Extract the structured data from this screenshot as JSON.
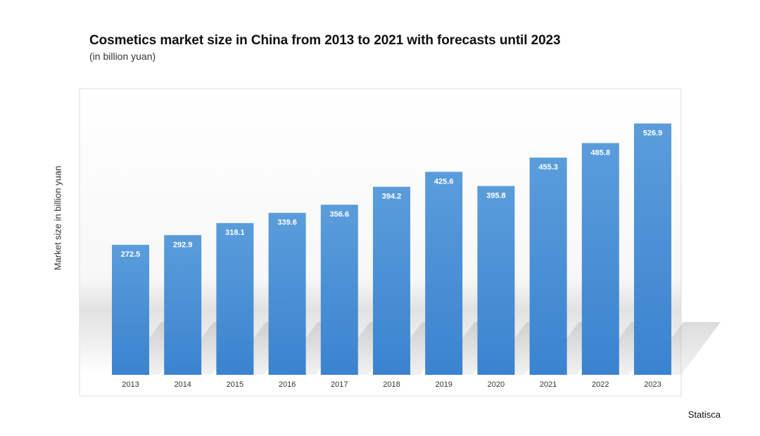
{
  "chart_data": {
    "type": "bar",
    "title": "Cosmetics market size in China from 2013 to 2021 with forecasts until 2023",
    "subtitle": "(in billion yuan)",
    "xlabel": "",
    "ylabel": "Market size in billion yuan",
    "categories": [
      "2013",
      "2014",
      "2015",
      "2016",
      "2017",
      "2018",
      "2019",
      "2020",
      "2021",
      "2022",
      "2023"
    ],
    "values": [
      272.5,
      292.9,
      318.1,
      339.6,
      356.6,
      394.2,
      425.6,
      395.8,
      455.3,
      485.8,
      526.9
    ],
    "value_labels": [
      "272.5",
      "292.9",
      "318.1",
      "339.6",
      "356.6",
      "394.2",
      "425.6",
      "395.8",
      "455.3",
      "485.8",
      "526.9"
    ],
    "ylim": [
      0,
      600
    ],
    "grid": false,
    "legend": "none",
    "bar_color": "#4a90d9"
  },
  "source": "Statisca"
}
